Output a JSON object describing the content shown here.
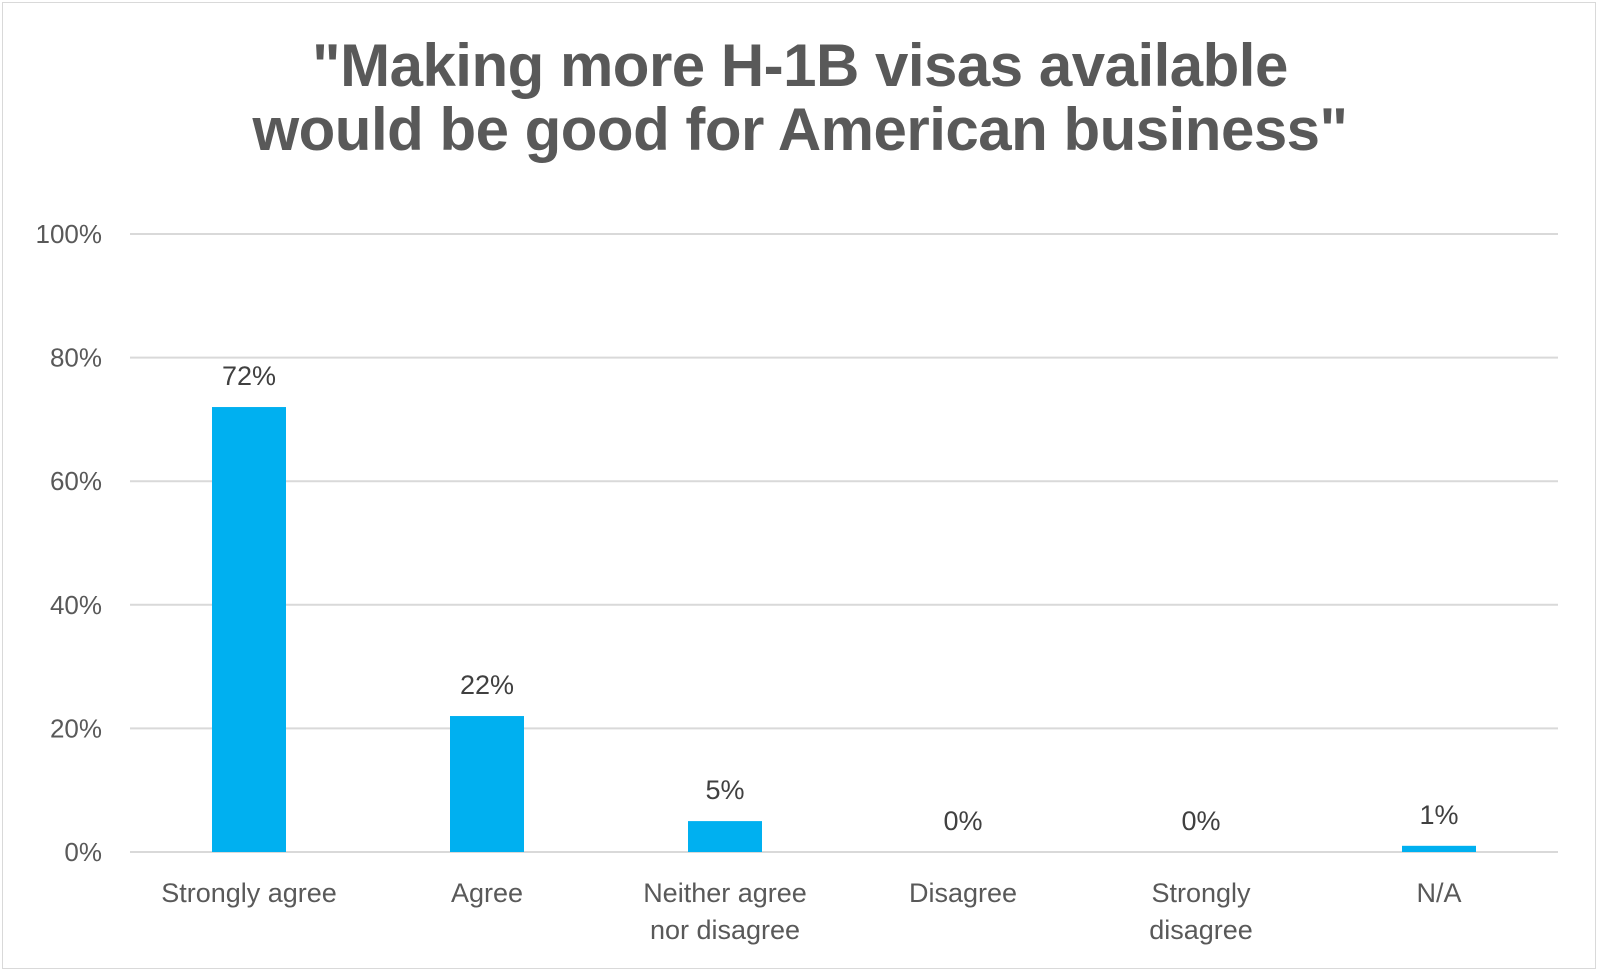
{
  "chart_data": {
    "type": "bar",
    "title_lines": [
      "\"Making more H-1B visas available",
      "would be good for American business\""
    ],
    "categories": [
      [
        "Strongly agree"
      ],
      [
        "Agree"
      ],
      [
        "Neither agree",
        "nor disagree"
      ],
      [
        "Disagree"
      ],
      [
        "Strongly",
        "disagree"
      ],
      [
        "N/A"
      ]
    ],
    "values": [
      72,
      22,
      5,
      0,
      0,
      1
    ],
    "data_labels": [
      "72%",
      "22%",
      "5%",
      "0%",
      "0%",
      "1%"
    ],
    "y_ticks": [
      "0%",
      "20%",
      "40%",
      "60%",
      "80%",
      "100%"
    ],
    "y_tick_values": [
      0,
      20,
      40,
      60,
      80,
      100
    ],
    "ylim": [
      0,
      100
    ],
    "grid": true,
    "bar_color": "#00b0f0",
    "grid_color": "#d9d9d9"
  }
}
